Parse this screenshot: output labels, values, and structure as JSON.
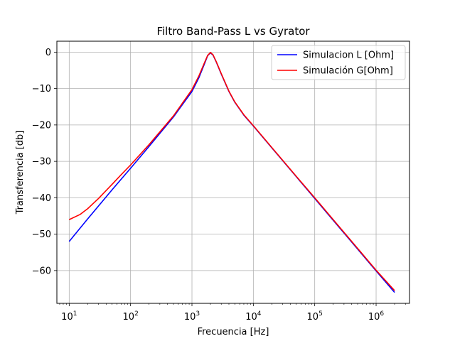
{
  "chart_data": {
    "type": "line",
    "title": "Filtro Band-Pass L vs Gyrator",
    "xlabel": "Frecuencia [Hz]",
    "ylabel": "Transferencia [db]",
    "xscale": "log",
    "xlim": [
      6.3,
      3500000
    ],
    "ylim": [
      -69,
      3
    ],
    "x_ticks": [
      {
        "value": 10,
        "base": "10",
        "exp": "1"
      },
      {
        "value": 100,
        "base": "10",
        "exp": "2"
      },
      {
        "value": 1000,
        "base": "10",
        "exp": "3"
      },
      {
        "value": 10000,
        "base": "10",
        "exp": "4"
      },
      {
        "value": 100000,
        "base": "10",
        "exp": "5"
      },
      {
        "value": 1000000,
        "base": "10",
        "exp": "6"
      }
    ],
    "y_ticks": [
      {
        "value": 0,
        "label": "0"
      },
      {
        "value": -10,
        "label": "−10"
      },
      {
        "value": -20,
        "label": "−20"
      },
      {
        "value": -30,
        "label": "−30"
      },
      {
        "value": -40,
        "label": "−40"
      },
      {
        "value": -50,
        "label": "−50"
      },
      {
        "value": -60,
        "label": "−60"
      }
    ],
    "grid": true,
    "legend_position": "top-right",
    "series": [
      {
        "name": "Simulacion L [Ohm]",
        "color": "#0000ff",
        "x": [
          10,
          20,
          50,
          100,
          200,
          500,
          1000,
          1300,
          1600,
          1800,
          2000,
          2200,
          2500,
          3000,
          4000,
          5000,
          7000,
          10000,
          20000,
          50000,
          100000,
          200000,
          500000,
          1000000,
          2000000
        ],
        "y": [
          -52.0,
          -45.8,
          -37.8,
          -31.9,
          -25.9,
          -17.8,
          -10.8,
          -7.0,
          -3.2,
          -1.0,
          -0.2,
          -0.8,
          -2.8,
          -6.0,
          -10.8,
          -13.8,
          -17.3,
          -20.3,
          -26.3,
          -34.2,
          -40.2,
          -46.2,
          -54.1,
          -60.1,
          -66.0
        ]
      },
      {
        "name": "Simulación G[Ohm]",
        "color": "#ff0000",
        "x": [
          10,
          15,
          20,
          30,
          50,
          70,
          100,
          200,
          500,
          1000,
          1300,
          1600,
          1800,
          2000,
          2200,
          2500,
          3000,
          4000,
          5000,
          7000,
          10000,
          20000,
          50000,
          100000,
          200000,
          500000,
          1000000,
          2000000
        ],
        "y": [
          -46.0,
          -44.6,
          -43.0,
          -40.2,
          -36.3,
          -33.7,
          -31.0,
          -25.4,
          -17.5,
          -10.3,
          -6.5,
          -2.9,
          -0.9,
          -0.1,
          -0.7,
          -2.7,
          -5.9,
          -10.7,
          -13.7,
          -17.2,
          -20.2,
          -26.2,
          -34.1,
          -40.0,
          -46.0,
          -53.9,
          -59.9,
          -65.5
        ]
      }
    ]
  }
}
